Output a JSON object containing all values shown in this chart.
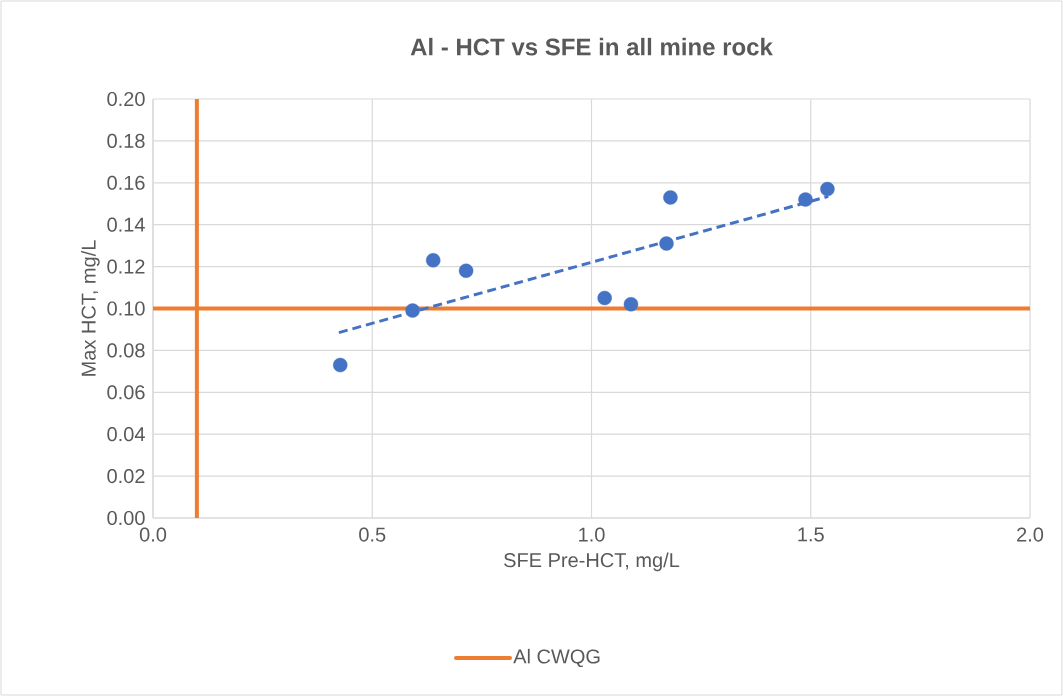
{
  "chart_data": {
    "type": "scatter",
    "title": "Al - HCT vs SFE in all mine rock",
    "xlabel": "SFE Pre-HCT, mg/L",
    "ylabel": "Max HCT, mg/L",
    "xlim": [
      0,
      2.0
    ],
    "xticks": [
      {
        "value": 0,
        "label": "0.0"
      },
      {
        "value": 0.5,
        "label": "0.5"
      },
      {
        "value": 1.0,
        "label": "1.0"
      },
      {
        "value": 1.5,
        "label": "1.5"
      },
      {
        "value": 2.0,
        "label": "2.0"
      }
    ],
    "ylim": [
      0,
      0.2
    ],
    "yticks": [
      {
        "value": 0,
        "label": "0.00"
      },
      {
        "value": 0.02,
        "label": "0.02"
      },
      {
        "value": 0.04,
        "label": "0.04"
      },
      {
        "value": 0.06,
        "label": "0.06"
      },
      {
        "value": 0.08,
        "label": "0.08"
      },
      {
        "value": 0.1,
        "label": "0.10"
      },
      {
        "value": 0.12,
        "label": "0.12"
      },
      {
        "value": 0.14,
        "label": "0.14"
      },
      {
        "value": 0.16,
        "label": "0.16"
      },
      {
        "value": 0.18,
        "label": "0.18"
      },
      {
        "value": 0.2,
        "label": "0.20"
      }
    ],
    "grid": true,
    "legend": "bottom",
    "series": [
      {
        "marker": "circle",
        "color": "#4472c4",
        "x": [
          0.427,
          0.592,
          0.639,
          0.714,
          1.03,
          1.09,
          1.171,
          1.18,
          1.488,
          1.538
        ],
        "values": [
          0.073,
          0.099,
          0.123,
          0.118,
          0.105,
          0.102,
          0.131,
          0.153,
          0.152,
          0.157
        ]
      },
      {
        "type": "line",
        "line_style": "dashed",
        "marker": "none",
        "color": "#4472c4",
        "x": [
          0.424,
          1.54
        ],
        "values": [
          0.0885,
          0.1535
        ]
      }
    ],
    "ref_lines": [
      {
        "axis": "y",
        "value": 0.1,
        "label": "Al CWQG",
        "color": "#ed7d31"
      },
      {
        "axis": "x",
        "value": 0.1,
        "color": "#ed7d31"
      }
    ]
  }
}
